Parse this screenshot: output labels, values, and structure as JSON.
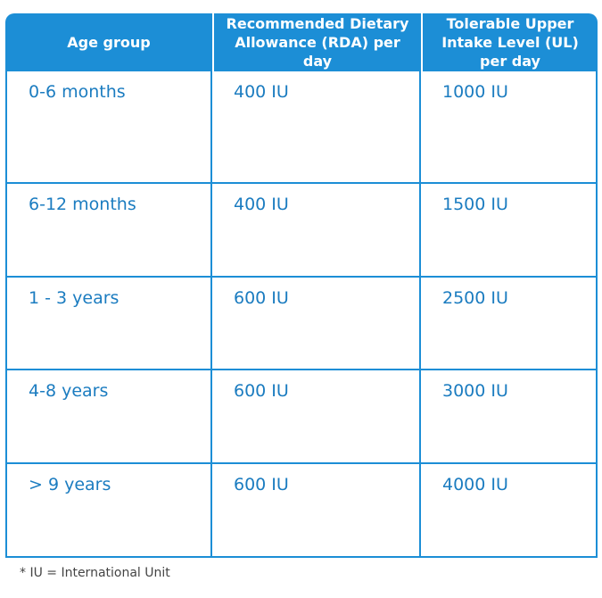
{
  "table": {
    "header": [
      "Age group",
      "Recommended Dietary Allowance (RDA) per day",
      "Tolerable Upper Intake Level (UL) per day"
    ],
    "rows": [
      [
        "0-6 months",
        "400 IU",
        "1000 IU"
      ],
      [
        "6-12 months",
        "400 IU",
        "1500 IU"
      ],
      [
        "1 - 3 years",
        "600 IU",
        "2500 IU"
      ],
      [
        "4-8 years",
        "600 IU",
        "3000 IU"
      ],
      [
        "> 9 years",
        "600 IU",
        "4000 IU"
      ]
    ]
  },
  "footnote": "* IU = International Unit"
}
